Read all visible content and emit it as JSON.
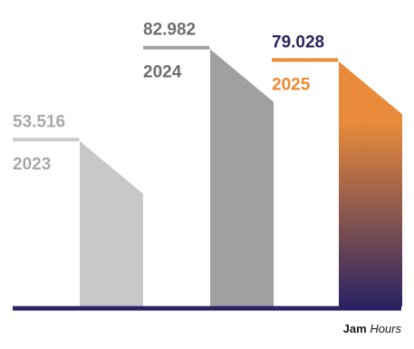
{
  "chart_data": {
    "type": "bar",
    "categories": [
      "2023",
      "2024",
      "2025"
    ],
    "values": [
      53516,
      82982,
      79028
    ],
    "value_labels": [
      "53.516",
      "82.982",
      "79.028"
    ],
    "ylim": [
      0,
      100000
    ],
    "grid": false,
    "legend": "none",
    "unit_label": {
      "bold": "Jam",
      "italic": "Hours"
    },
    "colors": {
      "bars": [
        "#c8c8ca",
        "#a0a0a3",
        "#e98b3a"
      ],
      "tops": [
        "#cbcbcd",
        "#a2a2a5",
        "#ec8a33"
      ],
      "value_text": [
        "#a9a9ab",
        "#6e6e70",
        "#2a245c"
      ],
      "year_text": [
        "#a9a9ab",
        "#6e6e70",
        "#ec8a33"
      ],
      "gradient_bottom": "#2b2363",
      "baseline": "#2b2363"
    }
  }
}
